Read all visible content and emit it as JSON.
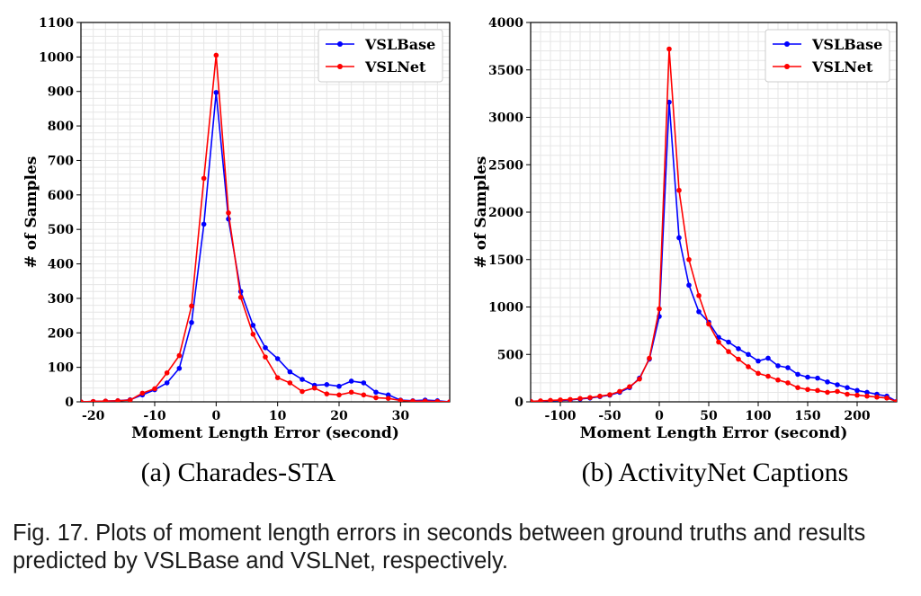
{
  "chart_data": [
    {
      "type": "line",
      "subtitle": "(a) Charades-STA",
      "xlabel": "Moment Length Error (second)",
      "ylabel": "# of Samples",
      "xlim": [
        -22,
        38
      ],
      "ylim": [
        0,
        1100
      ],
      "xticks": [
        -20,
        -10,
        0,
        10,
        20,
        30
      ],
      "yticks": [
        0,
        100,
        200,
        300,
        400,
        500,
        600,
        700,
        800,
        900,
        1000,
        1100
      ],
      "grid": true,
      "legend": "top-right",
      "series": [
        {
          "name": "VSLBase",
          "color": "#0000ff",
          "x": [
            -22,
            -20,
            -18,
            -16,
            -14,
            -12,
            -10,
            -8,
            -6,
            -4,
            -2,
            0,
            2,
            4,
            6,
            8,
            10,
            12,
            14,
            16,
            18,
            20,
            22,
            24,
            26,
            28,
            30,
            32,
            34,
            36,
            38
          ],
          "values": [
            0,
            1,
            2,
            3,
            6,
            20,
            35,
            55,
            97,
            230,
            515,
            897,
            530,
            320,
            222,
            157,
            125,
            87,
            65,
            48,
            50,
            45,
            60,
            55,
            28,
            20,
            5,
            3,
            5,
            3,
            0
          ]
        },
        {
          "name": "VSLNet",
          "color": "#ff0000",
          "x": [
            -22,
            -20,
            -18,
            -16,
            -14,
            -12,
            -10,
            -8,
            -6,
            -4,
            -2,
            0,
            2,
            4,
            6,
            8,
            10,
            12,
            14,
            16,
            18,
            20,
            22,
            24,
            26,
            28,
            30,
            32,
            34,
            36,
            38
          ],
          "values": [
            0,
            1,
            2,
            3,
            5,
            25,
            38,
            84,
            134,
            278,
            648,
            1005,
            548,
            303,
            196,
            130,
            70,
            55,
            30,
            40,
            23,
            20,
            28,
            20,
            12,
            10,
            4,
            2,
            2,
            1,
            0
          ]
        }
      ]
    },
    {
      "type": "line",
      "subtitle": "(b) ActivityNet Captions",
      "xlabel": "Moment Length Error (second)",
      "ylabel": "# of Samples",
      "xlim": [
        -130,
        240
      ],
      "ylim": [
        0,
        4000
      ],
      "xticks": [
        -100,
        -50,
        0,
        50,
        100,
        150,
        200
      ],
      "yticks": [
        0,
        500,
        1000,
        1500,
        2000,
        2500,
        3000,
        3500,
        4000
      ],
      "grid": true,
      "legend": "top-right",
      "series": [
        {
          "name": "VSLBase",
          "color": "#0000ff",
          "x": [
            -130,
            -120,
            -110,
            -100,
            -90,
            -80,
            -70,
            -60,
            -50,
            -40,
            -30,
            -20,
            -10,
            0,
            10,
            20,
            30,
            40,
            50,
            60,
            70,
            80,
            90,
            100,
            110,
            120,
            130,
            140,
            150,
            160,
            170,
            180,
            190,
            200,
            210,
            220,
            230,
            240
          ],
          "values": [
            5,
            8,
            12,
            15,
            20,
            30,
            40,
            55,
            70,
            100,
            150,
            250,
            450,
            900,
            3160,
            1730,
            1230,
            950,
            840,
            680,
            630,
            560,
            500,
            430,
            460,
            380,
            360,
            290,
            260,
            250,
            210,
            180,
            150,
            120,
            100,
            80,
            60,
            5
          ]
        },
        {
          "name": "VSLNet",
          "color": "#ff0000",
          "x": [
            -130,
            -120,
            -110,
            -100,
            -90,
            -80,
            -70,
            -60,
            -50,
            -40,
            -30,
            -20,
            -10,
            0,
            10,
            20,
            30,
            40,
            50,
            60,
            70,
            80,
            90,
            100,
            110,
            120,
            130,
            140,
            150,
            160,
            170,
            180,
            190,
            200,
            210,
            220,
            230,
            240
          ],
          "values": [
            5,
            10,
            15,
            20,
            25,
            35,
            45,
            60,
            75,
            110,
            160,
            240,
            460,
            980,
            3720,
            2230,
            1500,
            1120,
            820,
            630,
            530,
            450,
            370,
            300,
            270,
            230,
            200,
            150,
            130,
            120,
            100,
            110,
            80,
            70,
            60,
            50,
            40,
            3
          ]
        }
      ]
    }
  ],
  "caption": "Fig. 17. Plots of moment length errors in seconds between ground truths and results predicted by VSLBase and VSLNet, respectively."
}
